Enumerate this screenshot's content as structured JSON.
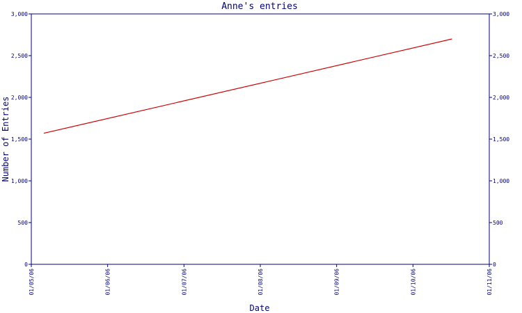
{
  "chart_data": {
    "type": "line",
    "title": "Anne's entries",
    "xlabel": "Date",
    "ylabel": "Number of Entries",
    "x_tick_labels": [
      "01/05/06",
      "01/06/06",
      "01/07/06",
      "01/08/06",
      "01/09/06",
      "01/10/06",
      "01/11/06"
    ],
    "y_tick_labels": [
      "0",
      "500",
      "1,000",
      "1,500",
      "2,000",
      "2,500",
      "3,000"
    ],
    "y_ticks": [
      0,
      500,
      1000,
      1500,
      2000,
      2500,
      3000
    ],
    "ylim": [
      0,
      3000
    ],
    "xlim": [
      "2006-05-01",
      "2006-11-01"
    ],
    "series": [
      {
        "points": [
          {
            "x": "2006-05-06",
            "y": 1570
          },
          {
            "x": "2006-10-17",
            "y": 2700
          }
        ]
      }
    ],
    "grid": false,
    "y_axis_right_mirror": true
  },
  "colors": {
    "axis": "#000080",
    "line": "#cc0000",
    "background": "#ffffff"
  }
}
